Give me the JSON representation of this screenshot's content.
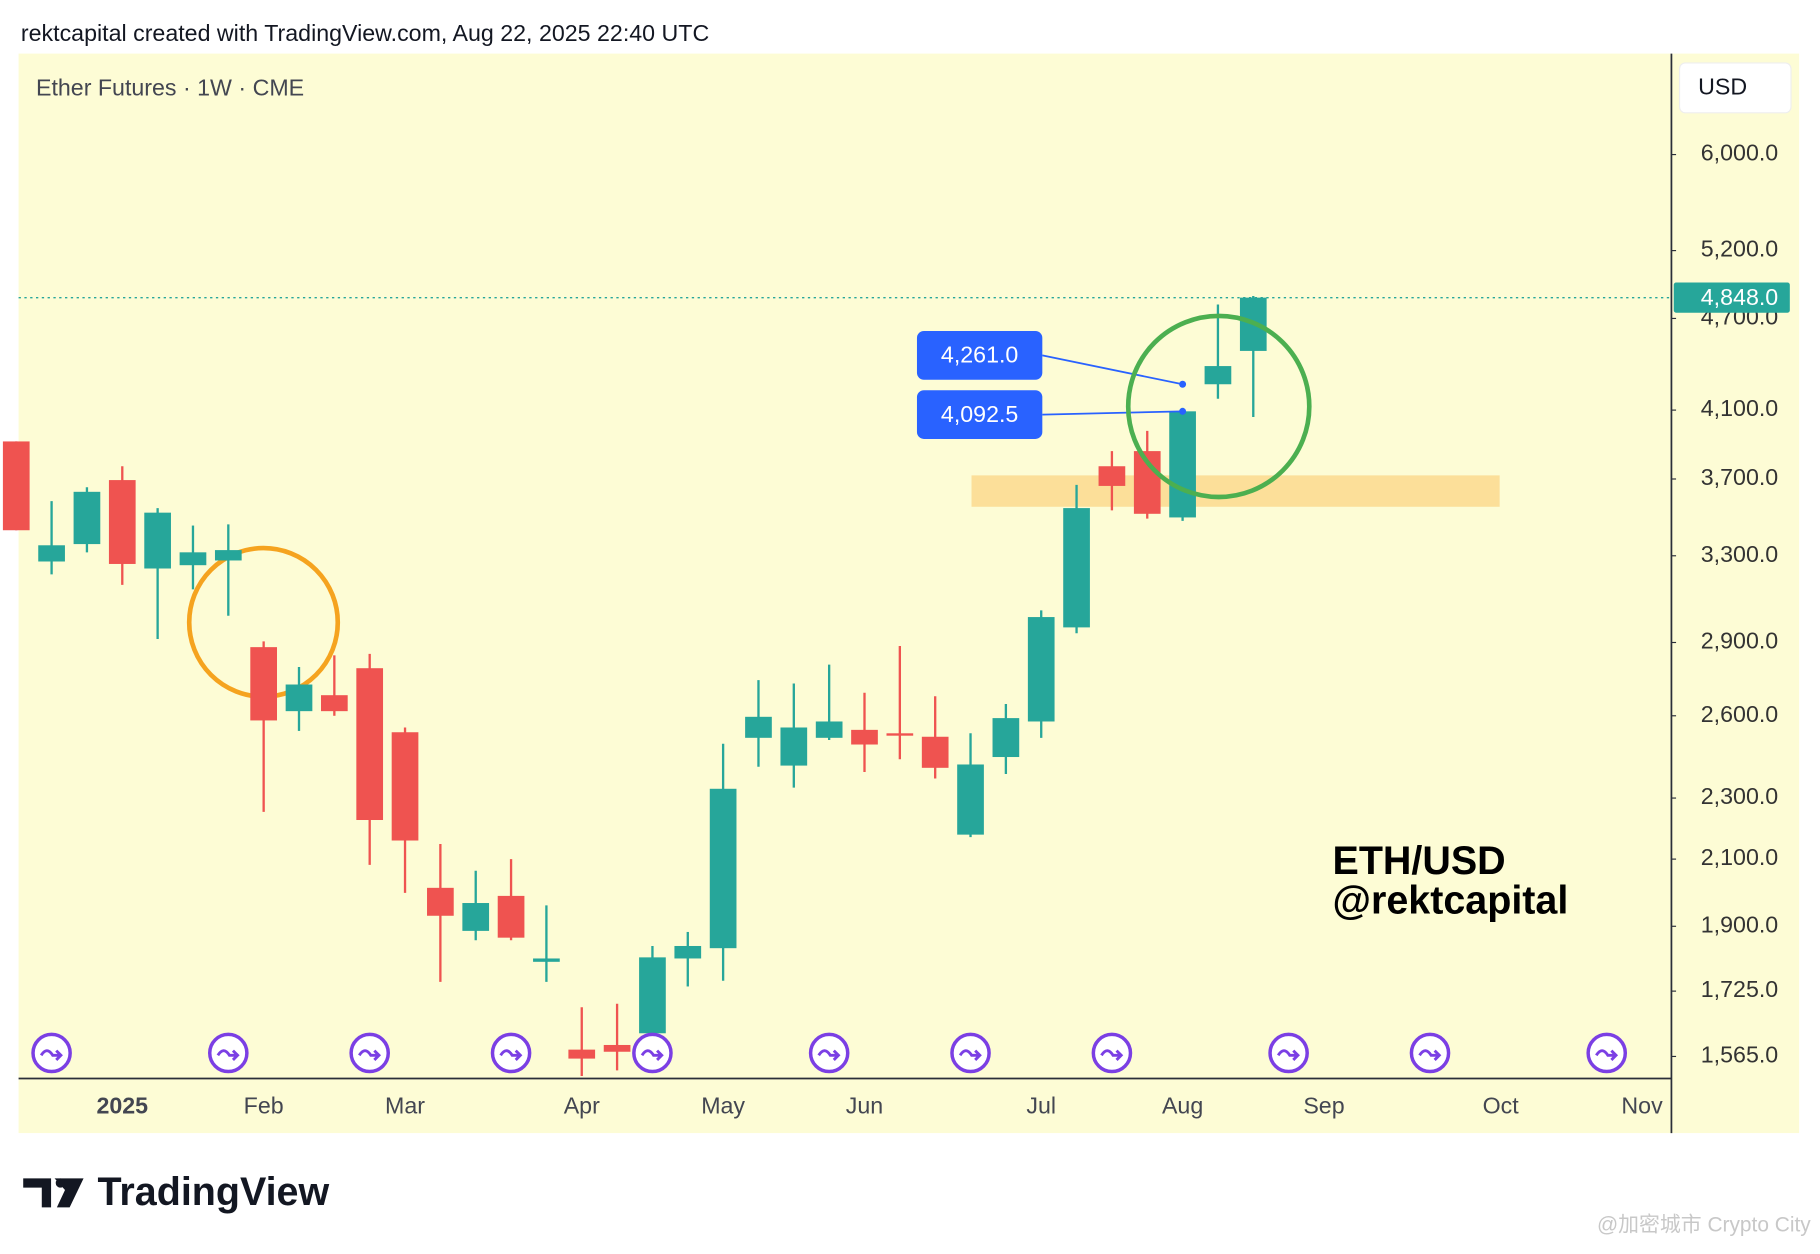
{
  "header": {
    "credit": "rektcapital created with TradingView.com, Aug 22, 2025 22:40 UTC"
  },
  "chart_data": {
    "type": "candlestick",
    "title": "Ether Futures · 1W · CME",
    "currency": "USD",
    "log_scale": true,
    "categories": [
      null,
      null,
      null,
      "2025",
      null,
      null,
      null,
      "Feb",
      null,
      null,
      null,
      "Mar",
      null,
      null,
      null,
      null,
      "Apr",
      null,
      null,
      null,
      "May",
      null,
      null,
      null,
      "Jun",
      null,
      null,
      null,
      null,
      "Jul",
      null,
      null,
      null,
      "Aug",
      null,
      null,
      null,
      "Sep",
      null,
      null,
      null,
      null,
      "Oct",
      null,
      null,
      null,
      "Nov"
    ],
    "open": [
      3913,
      3272,
      3358,
      3694,
      3238,
      3254,
      3277,
      2880,
      2618,
      2681,
      2791,
      2537,
      2012,
      1887,
      1988,
      1802,
      1581,
      1592,
      1620,
      1811,
      1839,
      2516,
      2414,
      2516,
      2546,
      2533,
      2520,
      2178,
      2445,
      2578,
      2966,
      3771,
      3857,
      3494,
      4261,
      4478,
      null,
      null,
      null,
      null,
      null,
      null,
      null,
      null,
      null,
      null,
      null
    ],
    "high": [
      3913,
      3580,
      3655,
      3771,
      3543,
      3452,
      3458,
      2905,
      2796,
      2845,
      2851,
      2555,
      2148,
      2064,
      2100,
      1960,
      1684,
      1693,
      1845,
      1884,
      2494,
      2742,
      2728,
      2806,
      2691,
      2885,
      2677,
      2533,
      2646,
      3042,
      3668,
      3857,
      3975,
      4114,
      4799,
      4860,
      null,
      null,
      null,
      null,
      null,
      null,
      null,
      null,
      null,
      null,
      null
    ],
    "low": [
      3428,
      3210,
      3317,
      3160,
      2915,
      3139,
      3018,
      2253,
      2542,
      2600,
      2082,
      1997,
      1749,
      1861,
      1861,
      1749,
      1520,
      1533,
      1592,
      1737,
      1752,
      2410,
      2336,
      2508,
      2391,
      2437,
      2368,
      2170,
      2384,
      2516,
      2940,
      3531,
      3488,
      3476,
      4170,
      4058,
      null,
      null,
      null,
      null,
      null,
      null,
      null,
      null,
      null,
      null,
      null
    ],
    "close": [
      3428,
      3352,
      3630,
      3260,
      3519,
      3317,
      3328,
      2582,
      2724,
      2618,
      2226,
      2159,
      1930,
      1967,
      1868,
      1811,
      1560,
      1576,
      1814,
      1845,
      2332,
      2596,
      2555,
      2578,
      2491,
      2524,
      2406,
      2418,
      2591,
      3012,
      3543,
      3662,
      3513,
      4092.5,
      4378,
      4848,
      null,
      null,
      null,
      null,
      null,
      null,
      null,
      null,
      null,
      null,
      null
    ],
    "up_color": "#26a69a",
    "down_color": "#ef5350",
    "ylim": [
      1517,
      6974
    ],
    "yticks": [
      {
        "value": 1565,
        "label": "1,565.0"
      },
      {
        "value": 1725,
        "label": "1,725.0"
      },
      {
        "value": 1900,
        "label": "1,900.0"
      },
      {
        "value": 2100,
        "label": "2,100.0"
      },
      {
        "value": 2300,
        "label": "2,300.0"
      },
      {
        "value": 2600,
        "label": "2,600.0"
      },
      {
        "value": 2900,
        "label": "2,900.0"
      },
      {
        "value": 3300,
        "label": "3,300.0"
      },
      {
        "value": 3700,
        "label": "3,700.0"
      },
      {
        "value": 4100,
        "label": "4,100.0"
      },
      {
        "value": 4700,
        "label": "4,700.0"
      },
      {
        "value": 5200,
        "label": "5,200.0"
      },
      {
        "value": 6000,
        "label": "6,000.0"
      }
    ],
    "last_price": {
      "value": 4848,
      "label": "4,848.0"
    },
    "price_notes": [
      {
        "value": 4261,
        "label": "4,261.0"
      },
      {
        "value": 4092.5,
        "label": "4,092.5"
      }
    ],
    "highlight_zone": {
      "from": 3550,
      "to": 3720,
      "color": "#fbd98e"
    },
    "watermark_pair": "ETH/USD",
    "watermark_handle": "@rektcapital"
  },
  "footer": {
    "brand": "TradingView",
    "source": "@加密城市 Crypto City"
  }
}
